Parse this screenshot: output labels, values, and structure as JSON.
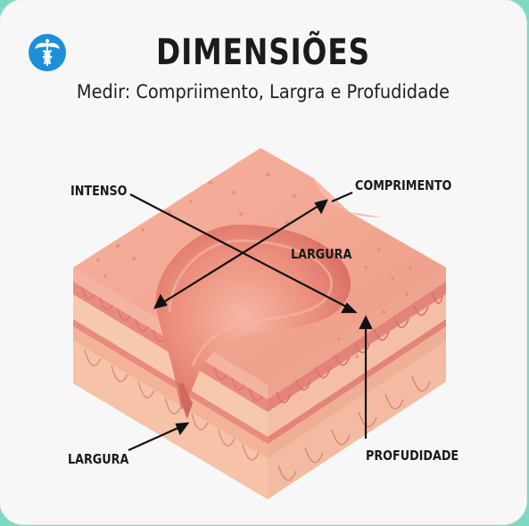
{
  "header": {
    "title": "DIMENSIÕES",
    "subtitle": "Medir: Compriimento, Largra e Profudidade"
  },
  "logo": {
    "icon": "caduceus-icon",
    "color": "#1c8fd6"
  },
  "labels": {
    "intenso": "INTENSO",
    "comprimento": "COMPRIMENTO",
    "largura_top": "LARGURA",
    "largura_bottom": "LARGURA",
    "profundidade": "PROFUDIDADE"
  },
  "colors": {
    "skin_top": "#f2a491",
    "wound": "#e98577",
    "layer_light": "#f6c7aa",
    "layer_dark": "#e0857a",
    "arrow": "#111111"
  }
}
